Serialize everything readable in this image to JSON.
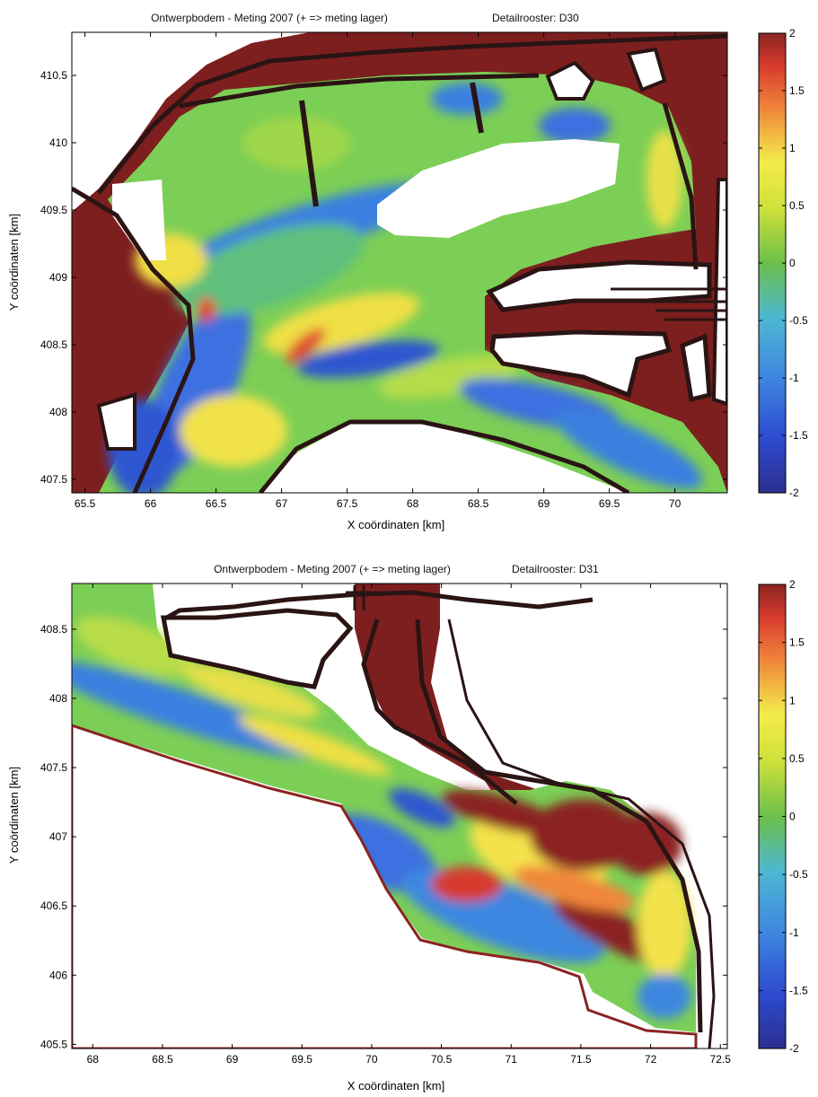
{
  "chart_data": [
    {
      "type": "heatmap",
      "title": "Ontwerpbodem - Meting 2007 (+ => meting lager)",
      "subtitle": "Detailrooster: D30",
      "xlabel": "X coördinaten [km]",
      "ylabel": "Y coördinaten [km]",
      "xlim": [
        65.4,
        70.4
      ],
      "ylim": [
        407.4,
        410.82
      ],
      "xticks": [
        "65.5",
        "66",
        "66.5",
        "67",
        "67.5",
        "68",
        "68.5",
        "69",
        "69.5",
        "70"
      ],
      "xtick_values": [
        65.5,
        66,
        66.5,
        67,
        67.5,
        68,
        68.5,
        69,
        69.5,
        70
      ],
      "yticks": [
        "407.5",
        "408",
        "408.5",
        "409",
        "409.5",
        "410",
        "410.5"
      ],
      "ytick_values": [
        407.5,
        408,
        408.5,
        409,
        409.5,
        410,
        410.5
      ],
      "colorbar": {
        "colormap": "jet",
        "range": [
          -2,
          2
        ],
        "ticks": [
          "2",
          "1.5",
          "1",
          "0.5",
          "0",
          "-0.5",
          "-1",
          "-1.5",
          "-2"
        ],
        "tick_values": [
          2,
          1.5,
          1,
          0.5,
          0,
          -0.5,
          -1,
          -1.5,
          -2
        ]
      },
      "grid": false
    },
    {
      "type": "heatmap",
      "title": "Ontwerpbodem - Meting 2007 (+ => meting lager)",
      "subtitle": "Detailrooster: D31",
      "xlabel": "X coördinaten [km]",
      "ylabel": "Y coördinaten [km]",
      "xlim": [
        67.85,
        72.55
      ],
      "ylim": [
        405.47,
        408.83
      ],
      "xticks": [
        "68",
        "68.5",
        "69",
        "69.5",
        "70",
        "70.5",
        "71",
        "71.5",
        "72",
        "72.5"
      ],
      "xtick_values": [
        68,
        68.5,
        69,
        69.5,
        70,
        70.5,
        71,
        71.5,
        72,
        72.5
      ],
      "yticks": [
        "405.5",
        "406",
        "406.5",
        "407",
        "407.5",
        "408",
        "408.5"
      ],
      "ytick_values": [
        405.5,
        406,
        406.5,
        407,
        407.5,
        408,
        408.5
      ],
      "colorbar": {
        "colormap": "jet",
        "range": [
          -2,
          2
        ],
        "ticks": [
          "2",
          "1.5",
          "1",
          "0.5",
          "0",
          "-0.5",
          "-1",
          "-1.5",
          "-2"
        ],
        "tick_values": [
          2,
          1.5,
          1,
          0.5,
          0,
          -0.5,
          -1,
          -1.5,
          -2
        ]
      },
      "grid": false
    }
  ],
  "colors": {
    "land": "#7d1f1f",
    "structure": "#2a1414",
    "background": "#ffffff"
  }
}
